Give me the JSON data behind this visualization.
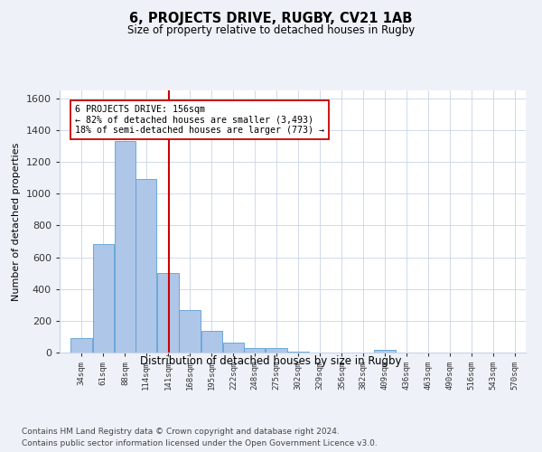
{
  "title": "6, PROJECTS DRIVE, RUGBY, CV21 1AB",
  "subtitle": "Size of property relative to detached houses in Rugby",
  "xlabel": "Distribution of detached houses by size in Rugby",
  "ylabel": "Number of detached properties",
  "bin_labels": [
    "34sqm",
    "61sqm",
    "88sqm",
    "114sqm",
    "141sqm",
    "168sqm",
    "195sqm",
    "222sqm",
    "248sqm",
    "275sqm",
    "302sqm",
    "329sqm",
    "356sqm",
    "382sqm",
    "409sqm",
    "436sqm",
    "463sqm",
    "490sqm",
    "516sqm",
    "543sqm",
    "570sqm"
  ],
  "bin_edges": [
    34,
    61,
    88,
    114,
    141,
    168,
    195,
    222,
    248,
    275,
    302,
    329,
    356,
    382,
    409,
    436,
    463,
    490,
    516,
    543,
    570
  ],
  "bar_heights": [
    90,
    680,
    1330,
    1090,
    500,
    265,
    135,
    65,
    30,
    30,
    5,
    0,
    0,
    0,
    15,
    0,
    0,
    0,
    0,
    0,
    0
  ],
  "bar_color": "#aec6e8",
  "bar_edge_color": "#5a9fd4",
  "property_size": 156,
  "annotation_title": "6 PROJECTS DRIVE: 156sqm",
  "annotation_line1": "← 82% of detached houses are smaller (3,493)",
  "annotation_line2": "18% of semi-detached houses are larger (773) →",
  "vline_color": "#cc0000",
  "ylim": [
    0,
    1650
  ],
  "yticks": [
    0,
    200,
    400,
    600,
    800,
    1000,
    1200,
    1400,
    1600
  ],
  "footnote1": "Contains HM Land Registry data © Crown copyright and database right 2024.",
  "footnote2": "Contains public sector information licensed under the Open Government Licence v3.0.",
  "bg_color": "#eef2f8",
  "plot_bg_color": "#ffffff"
}
